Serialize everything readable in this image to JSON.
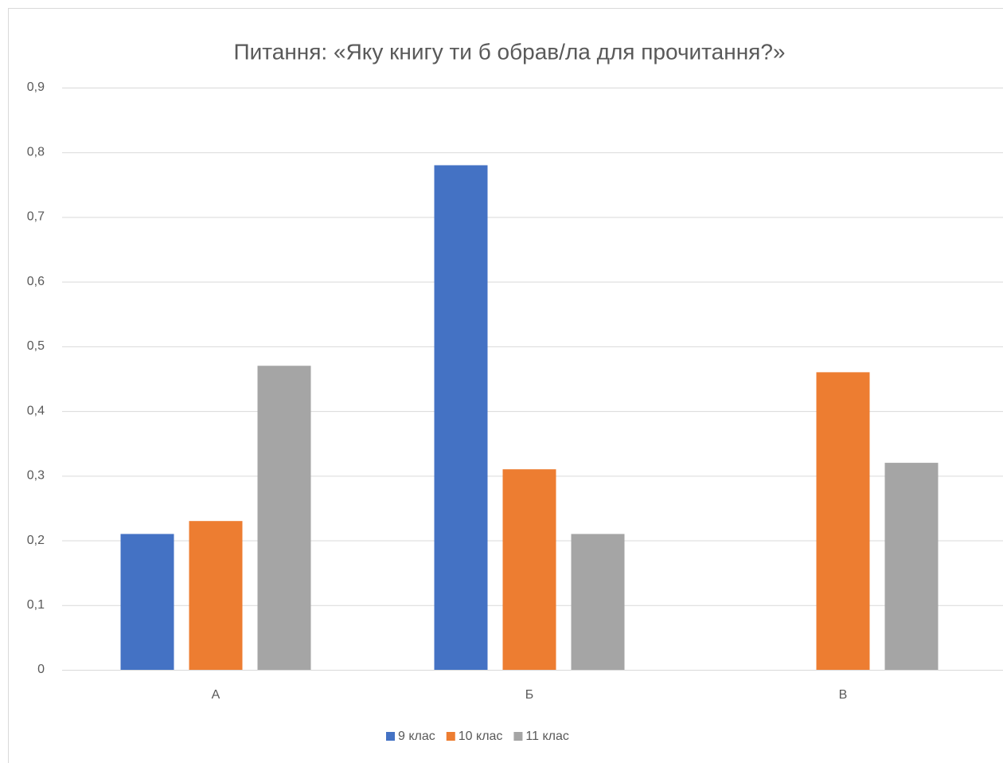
{
  "chart_data": {
    "type": "bar",
    "title": "Питання: «Яку книгу ти б обрав/ла для прочитання?»",
    "categories": [
      "А",
      "Б",
      "В"
    ],
    "series": [
      {
        "name": "9 клас",
        "color": "#4472c4",
        "values": [
          0.21,
          0.78,
          0
        ]
      },
      {
        "name": "10 клас",
        "color": "#ed7d31",
        "values": [
          0.23,
          0.31,
          0.46
        ]
      },
      {
        "name": "11 клас",
        "color": "#a5a5a5",
        "values": [
          0.47,
          0.21,
          0.32
        ]
      }
    ],
    "ylim": [
      0,
      0.9
    ],
    "yticks": [
      0,
      {
        "value": 0.1,
        "label": "0,1"
      },
      {
        "value": 0.2,
        "label": "0,2"
      },
      {
        "value": 0.3,
        "label": "0,3"
      },
      {
        "value": 0.4,
        "label": "0,4"
      },
      {
        "value": 0.5,
        "label": "0,5"
      },
      {
        "value": 0.6,
        "label": "0,6"
      },
      {
        "value": 0.7,
        "label": "0,7"
      },
      {
        "value": 0.8,
        "label": "0,8"
      },
      {
        "value": 0.9,
        "label": "0,9"
      }
    ],
    "grid": true,
    "legend": "bottom"
  }
}
